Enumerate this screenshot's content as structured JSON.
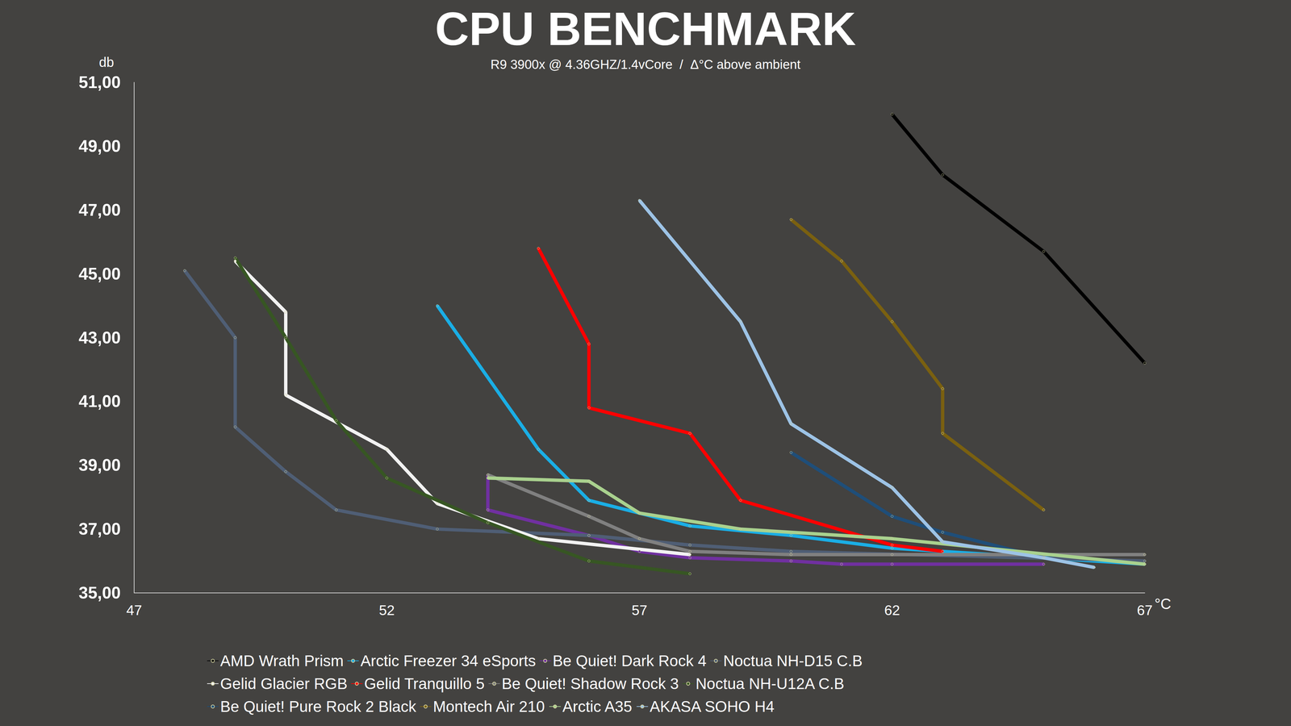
{
  "chart_data": {
    "type": "line",
    "title": "CPU BENCHMARK",
    "subtitle": "R9 3900x @ 4.36GHZ/1.4vCore  /  Δ°C above ambient",
    "x_label": "°C",
    "y_label": "db",
    "xlim": [
      47,
      67
    ],
    "xticks": [
      47,
      52,
      57,
      62,
      67
    ],
    "ylim": [
      35,
      51
    ],
    "yticks": [
      {
        "value": 35,
        "label": "35,00"
      },
      {
        "value": 37,
        "label": "37,00"
      },
      {
        "value": 39,
        "label": "39,00"
      },
      {
        "value": 41,
        "label": "41,00"
      },
      {
        "value": 43,
        "label": "43,00"
      },
      {
        "value": 45,
        "label": "45,00"
      },
      {
        "value": 47,
        "label": "47,00"
      },
      {
        "value": 49,
        "label": "49,00"
      },
      {
        "value": 51,
        "label": "51,00"
      }
    ],
    "grid": false,
    "legend": "bottom",
    "marker": "circle",
    "series": [
      {
        "name": "AMD Wrath Prism",
        "color": "#000000",
        "x": [
          62,
          63,
          65,
          67
        ],
        "values": [
          50.0,
          48.1,
          45.7,
          42.2
        ]
      },
      {
        "name": "Arctic Freezer 34 eSports",
        "color": "#1aaee5",
        "x": [
          53,
          55,
          56,
          58,
          60,
          62,
          67
        ],
        "values": [
          44.0,
          39.5,
          37.9,
          37.1,
          36.8,
          36.4,
          35.9
        ]
      },
      {
        "name": "Be Quiet! Dark Rock 4",
        "color": "#7030a0",
        "x": [
          54,
          54,
          56,
          57,
          58,
          60,
          61,
          62,
          65
        ],
        "values": [
          38.7,
          37.6,
          36.8,
          36.3,
          36.1,
          36.0,
          35.9,
          35.9,
          35.9
        ]
      },
      {
        "name": "Noctua NH-D15 C.B",
        "color": "#4f5e75",
        "x": [
          48,
          49,
          49,
          50,
          51,
          53,
          56,
          58,
          60,
          67
        ],
        "values": [
          45.1,
          43.0,
          40.2,
          38.8,
          37.6,
          37.0,
          36.8,
          36.5,
          36.3,
          36.0
        ]
      },
      {
        "name": "Gelid Glacier RGB",
        "color": "#f2f2f2",
        "x": [
          49,
          50,
          50,
          52,
          53,
          55,
          58
        ],
        "values": [
          45.4,
          43.8,
          41.2,
          39.5,
          37.8,
          36.7,
          36.2
        ]
      },
      {
        "name": "Gelid Tranquillo 5",
        "color": "#ff0000",
        "x": [
          55,
          56,
          56,
          58,
          59,
          62,
          63
        ],
        "values": [
          45.8,
          42.8,
          40.8,
          40.0,
          37.9,
          36.5,
          36.3
        ]
      },
      {
        "name": "Be Quiet! Shadow Rock 3",
        "color": "#808080",
        "x": [
          54,
          56,
          57,
          58,
          60,
          62,
          67
        ],
        "values": [
          38.7,
          37.4,
          36.7,
          36.3,
          36.2,
          36.2,
          36.2
        ]
      },
      {
        "name": "Noctua NH-U12A C.B",
        "color": "#375623",
        "x": [
          49,
          50,
          51,
          52,
          54,
          56,
          58
        ],
        "values": [
          45.5,
          43.0,
          40.4,
          38.6,
          37.2,
          36.0,
          35.6
        ]
      },
      {
        "name": "Be Quiet! Pure Rock 2 Black",
        "color": "#1f4e79",
        "x": [
          60,
          62,
          63,
          65
        ],
        "values": [
          39.4,
          37.4,
          36.9,
          36.1
        ]
      },
      {
        "name": "Montech Air 210",
        "color": "#7a6010",
        "x": [
          60,
          61,
          62,
          63,
          63,
          65
        ],
        "values": [
          46.7,
          45.4,
          43.5,
          41.4,
          40.0,
          37.6
        ]
      },
      {
        "name": "Arctic A35",
        "color": "#a9d18e",
        "x": [
          54,
          56,
          57,
          59,
          62,
          67
        ],
        "values": [
          38.6,
          38.5,
          37.5,
          37.0,
          36.7,
          35.9
        ]
      },
      {
        "name": "AKASA SOHO H4",
        "color": "#9dc3e6",
        "x": [
          57,
          59,
          60,
          62,
          63,
          65,
          66
        ],
        "values": [
          47.3,
          43.5,
          40.3,
          38.3,
          36.6,
          36.1,
          35.8
        ]
      }
    ]
  }
}
